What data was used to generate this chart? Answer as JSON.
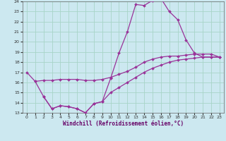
{
  "xlabel": "Windchill (Refroidissement éolien,°C)",
  "bg_color": "#cce8f0",
  "grid_color": "#a8d4c8",
  "line_color": "#993399",
  "xlim_min": -0.5,
  "xlim_max": 23.5,
  "ylim_min": 13,
  "ylim_max": 24,
  "yticks": [
    13,
    14,
    15,
    16,
    17,
    18,
    19,
    20,
    21,
    22,
    23,
    24
  ],
  "xticks": [
    0,
    1,
    2,
    3,
    4,
    5,
    6,
    7,
    8,
    9,
    10,
    11,
    12,
    13,
    14,
    15,
    16,
    17,
    18,
    19,
    20,
    21,
    22,
    23
  ],
  "curve1_x": [
    0,
    1,
    2,
    3,
    4,
    5,
    6,
    7,
    8,
    9,
    10,
    11,
    12,
    13,
    14,
    15,
    16,
    17,
    18,
    19,
    20,
    21,
    22,
    23
  ],
  "curve1_y": [
    17.0,
    16.1,
    14.6,
    13.4,
    13.7,
    13.6,
    13.4,
    13.0,
    13.9,
    14.1,
    16.4,
    18.9,
    21.0,
    23.7,
    23.6,
    24.1,
    24.3,
    23.0,
    22.2,
    20.2,
    18.9,
    18.5,
    18.5,
    18.5
  ],
  "curve2_x": [
    1,
    2,
    3,
    4,
    5,
    6,
    7,
    8,
    9,
    10,
    11,
    12,
    13,
    14,
    15,
    16,
    17,
    18,
    19,
    20,
    21,
    22,
    23
  ],
  "curve2_y": [
    16.1,
    16.2,
    16.2,
    16.3,
    16.3,
    16.3,
    16.2,
    16.2,
    16.3,
    16.5,
    16.8,
    17.1,
    17.5,
    18.0,
    18.3,
    18.5,
    18.6,
    18.6,
    18.7,
    18.8,
    18.8,
    18.8,
    18.5
  ],
  "curve3_x": [
    2,
    3,
    4,
    5,
    6,
    7,
    8,
    9,
    10,
    11,
    12,
    13,
    14,
    15,
    16,
    17,
    18,
    19,
    20,
    21,
    22,
    23
  ],
  "curve3_y": [
    14.6,
    13.4,
    13.7,
    13.6,
    13.4,
    13.0,
    13.9,
    14.1,
    15.0,
    15.5,
    16.0,
    16.5,
    17.0,
    17.4,
    17.7,
    18.0,
    18.2,
    18.3,
    18.4,
    18.5,
    18.5,
    18.5
  ]
}
